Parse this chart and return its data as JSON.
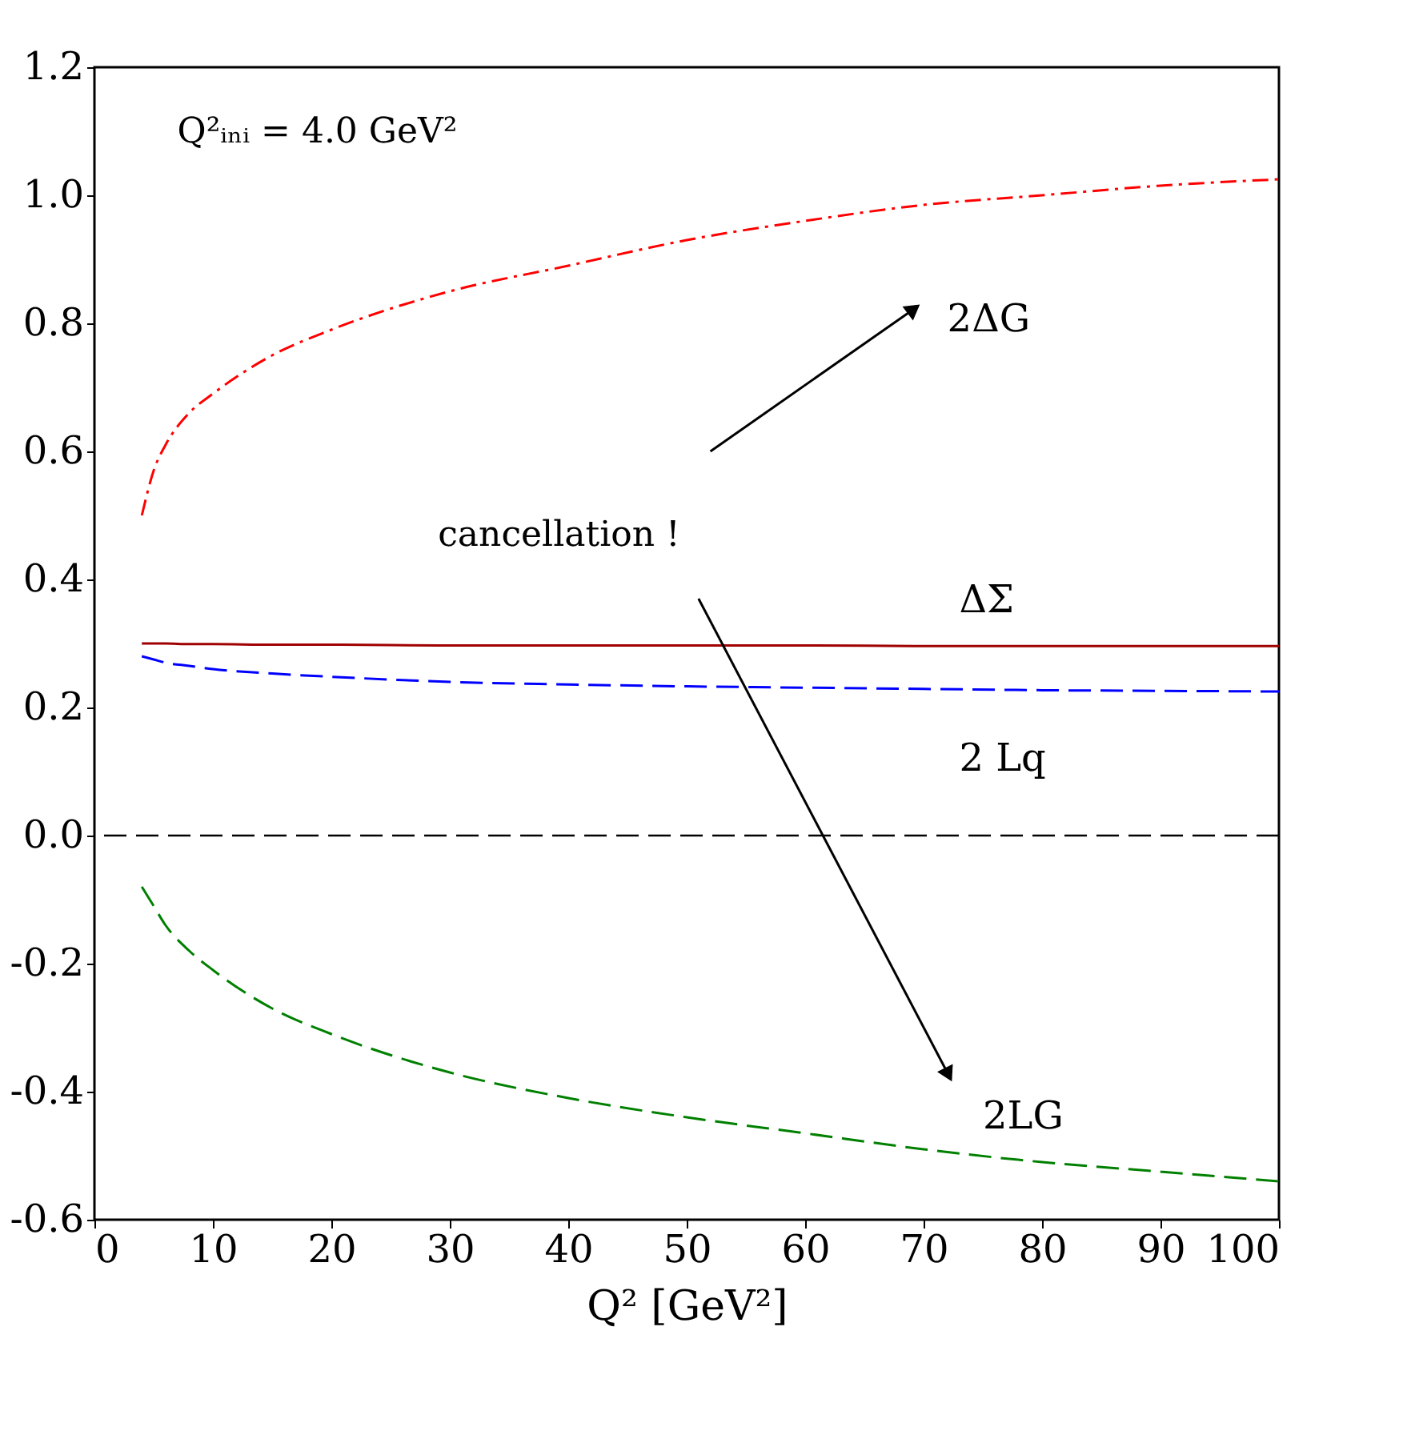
{
  "chart_data": {
    "type": "line",
    "xlabel": "Q² [GeV²]",
    "x": [
      4,
      5,
      6,
      8,
      10,
      15,
      20,
      30,
      40,
      50,
      60,
      70,
      80,
      90,
      100
    ],
    "series": [
      {
        "name": "2ΔG",
        "color": "#ff0000",
        "line_style": "dashdot",
        "values": [
          0.5,
          0.57,
          0.61,
          0.66,
          0.69,
          0.75,
          0.79,
          0.85,
          0.89,
          0.93,
          0.96,
          0.985,
          1.0,
          1.015,
          1.025
        ]
      },
      {
        "name": "ΔΣ",
        "color": "#a00000",
        "line_style": "solid",
        "values": [
          0.3,
          0.3,
          0.3,
          0.299,
          0.299,
          0.298,
          0.298,
          0.297,
          0.297,
          0.297,
          0.297,
          0.296,
          0.296,
          0.296,
          0.296
        ]
      },
      {
        "name": "2 Lq",
        "color": "#0000ff",
        "line_style": "dashed",
        "values": [
          0.28,
          0.275,
          0.27,
          0.265,
          0.26,
          0.253,
          0.248,
          0.24,
          0.236,
          0.233,
          0.231,
          0.229,
          0.227,
          0.226,
          0.225
        ]
      },
      {
        "name": "2LG",
        "color": "#008000",
        "line_style": "dashed",
        "values": [
          -0.08,
          -0.11,
          -0.14,
          -0.18,
          -0.21,
          -0.27,
          -0.31,
          -0.37,
          -0.41,
          -0.44,
          -0.465,
          -0.49,
          -0.51,
          -0.525,
          -0.54
        ]
      }
    ],
    "xlim": [
      0,
      100
    ],
    "xticks": [
      0,
      10,
      20,
      30,
      40,
      50,
      60,
      70,
      80,
      90,
      100
    ],
    "ylim": [
      -0.6,
      1.2
    ],
    "yticks": [
      -0.6,
      -0.4,
      -0.2,
      {
        "value": 0,
        "label": "0.0"
      },
      0.2,
      0.4,
      0.6,
      0.8,
      {
        "value": 1,
        "label": "1.0"
      },
      1.2
    ],
    "ref_lines": [
      {
        "axis": "y",
        "value": 0,
        "color": "#000000",
        "line_style": "dashed"
      }
    ],
    "annotations": [
      "Q²ᵢₙᵢ = 4.0 GeV²",
      "cancellation !"
    ],
    "grid": false
  }
}
